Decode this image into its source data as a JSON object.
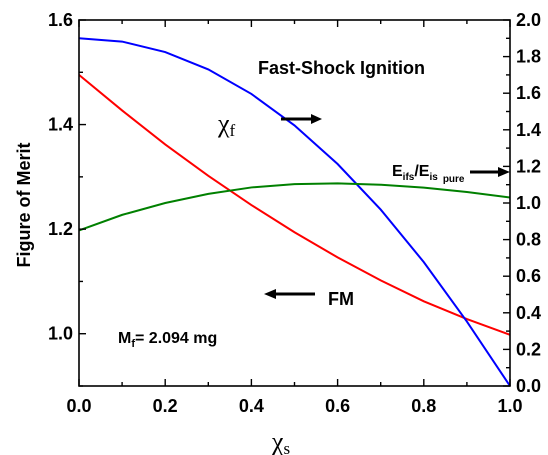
{
  "chart_data": {
    "type": "line",
    "xlabel": "χs",
    "ylabel_left": "Figure of Merit",
    "ylabel_right": "",
    "xlim": [
      0.0,
      1.0
    ],
    "ylim_left": [
      0.9,
      1.6
    ],
    "ylim_right": [
      0.0,
      2.0
    ],
    "x_ticks": [
      "0.0",
      "0.2",
      "0.4",
      "0.6",
      "0.8",
      "1.0"
    ],
    "y_left_ticks": [
      "1.0",
      "1.2",
      "1.4",
      "1.6"
    ],
    "y_right_ticks": [
      "0.0",
      "0.2",
      "0.4",
      "0.6",
      "0.8",
      "1.0",
      "1.2",
      "1.4",
      "1.6",
      "1.8",
      "2.0"
    ],
    "grid": false,
    "series": [
      {
        "name": "FM",
        "axis": "left",
        "color": "#ff0000",
        "x": [
          0.0,
          0.1,
          0.2,
          0.3,
          0.4,
          0.5,
          0.6,
          0.7,
          0.8,
          0.9,
          1.0
        ],
        "y": [
          1.495,
          1.427,
          1.362,
          1.302,
          1.246,
          1.194,
          1.146,
          1.102,
          1.062,
          1.028,
          0.998
        ]
      },
      {
        "name": "χf",
        "axis": "right",
        "color": "#0000ff",
        "x": [
          0.0,
          0.1,
          0.2,
          0.3,
          0.4,
          0.5,
          0.6,
          0.7,
          0.8,
          0.9,
          1.0
        ],
        "y": [
          1.9,
          1.882,
          1.825,
          1.73,
          1.596,
          1.424,
          1.213,
          0.964,
          0.677,
          0.352,
          0.0
        ]
      },
      {
        "name": "Eifs/Eis pure",
        "axis": "right",
        "color": "#008000",
        "x": [
          0.0,
          0.1,
          0.2,
          0.3,
          0.4,
          0.5,
          0.6,
          0.7,
          0.8,
          0.9,
          1.0
        ],
        "y": [
          0.85,
          0.935,
          1.0,
          1.05,
          1.085,
          1.103,
          1.107,
          1.1,
          1.084,
          1.06,
          1.03
        ]
      }
    ],
    "annotations": {
      "title": "Fast-Shock Ignition",
      "chi_f_label": "χf",
      "fm_label": "FM",
      "mass_prefix": "M",
      "mass_sub": "f",
      "mass_value": "= 2.094 mg",
      "ratio_num": "E",
      "ratio_num_sub": "ifs",
      "ratio_den": "/E",
      "ratio_den_sub": "is",
      "ratio_den_sub2": "pure"
    }
  }
}
